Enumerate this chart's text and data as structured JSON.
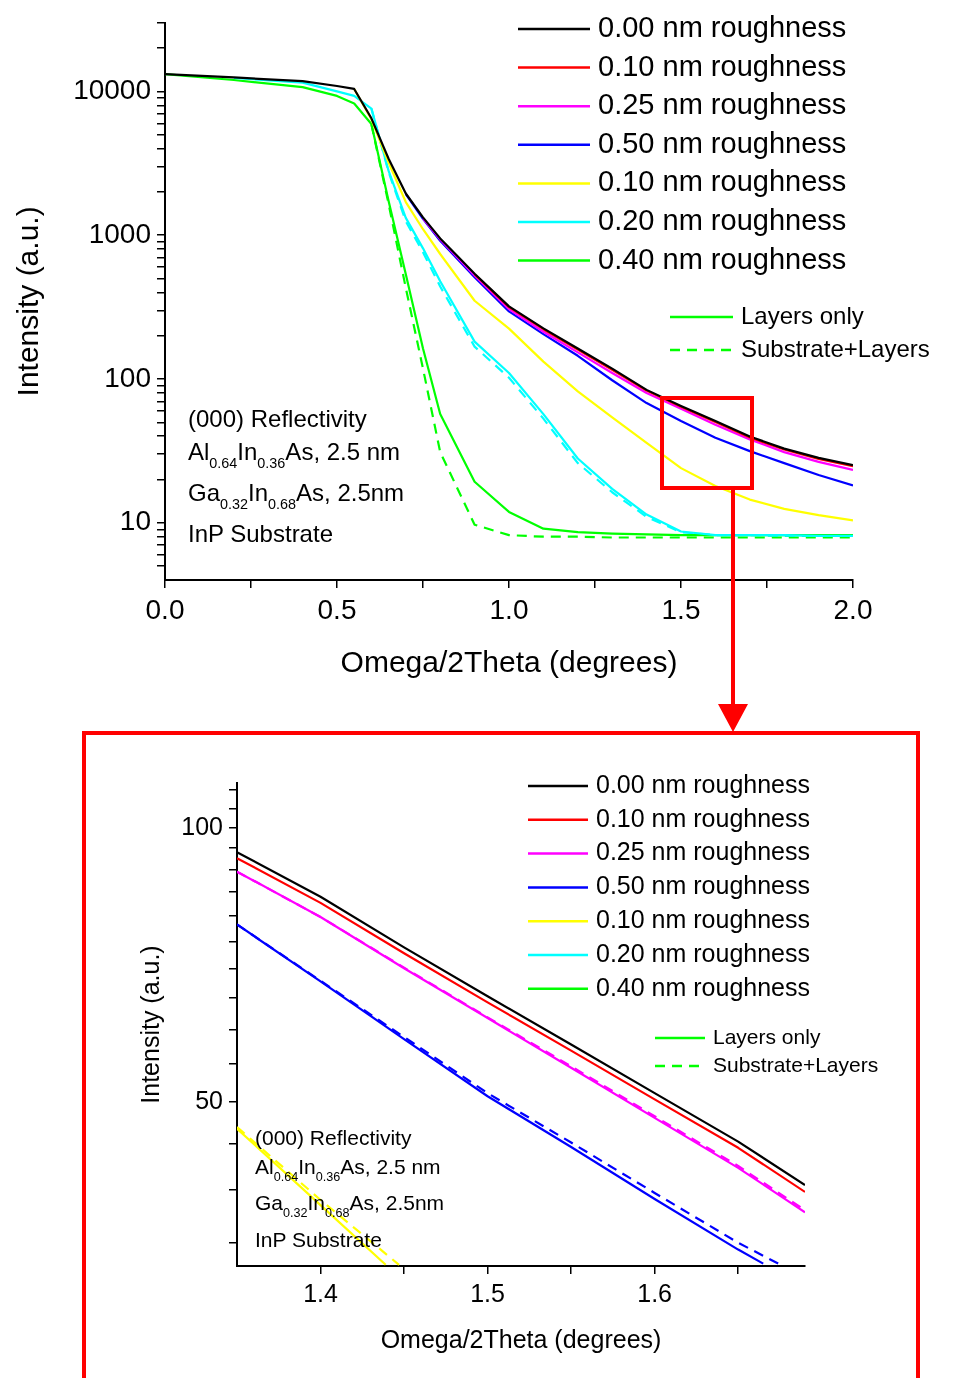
{
  "chart_data": [
    {
      "type": "line",
      "xlabel": "Omega/2Theta (degrees)",
      "ylabel": "Intensity (a.u.)",
      "log": "y",
      "grid": false,
      "legend": "top right",
      "marker": "none",
      "xlim": [
        0,
        2
      ],
      "xticks": [
        {
          "value": 0,
          "label": "0.0"
        },
        {
          "value": 0.25,
          "label": null
        },
        {
          "value": 0.5,
          "label": "0.5"
        },
        {
          "value": 0.75,
          "label": null
        },
        {
          "value": 1,
          "label": "1.0"
        },
        {
          "value": 1.25,
          "label": null
        },
        {
          "value": 1.5,
          "label": "1.5"
        },
        {
          "value": 1.75,
          "label": null
        },
        {
          "value": 2,
          "label": "2.0"
        }
      ],
      "ylim": [
        4,
        30000
      ],
      "yticks": [
        {
          "value": 5,
          "label": null
        },
        {
          "value": 6,
          "label": null
        },
        {
          "value": 7,
          "label": null
        },
        {
          "value": 8,
          "label": null
        },
        {
          "value": 9,
          "label": null
        },
        10,
        {
          "value": 20,
          "label": null
        },
        {
          "value": 30,
          "label": null
        },
        {
          "value": 40,
          "label": null
        },
        {
          "value": 50,
          "label": null
        },
        {
          "value": 60,
          "label": null
        },
        {
          "value": 70,
          "label": null
        },
        {
          "value": 80,
          "label": null
        },
        {
          "value": 90,
          "label": null
        },
        100,
        {
          "value": 200,
          "label": null
        },
        {
          "value": 300,
          "label": null
        },
        {
          "value": 400,
          "label": null
        },
        {
          "value": 500,
          "label": null
        },
        {
          "value": 600,
          "label": null
        },
        {
          "value": 700,
          "label": null
        },
        {
          "value": 800,
          "label": null
        },
        {
          "value": 900,
          "label": null
        },
        1000,
        {
          "value": 2000,
          "label": null
        },
        {
          "value": 3000,
          "label": null
        },
        {
          "value": 4000,
          "label": null
        },
        {
          "value": 5000,
          "label": null
        },
        {
          "value": 6000,
          "label": null
        },
        {
          "value": 7000,
          "label": null
        },
        {
          "value": 8000,
          "label": null
        },
        {
          "value": 9000,
          "label": null
        },
        10000,
        {
          "value": 20000,
          "label": null
        },
        {
          "value": 30000,
          "label": null
        }
      ],
      "x": [
        0,
        0.2,
        0.4,
        0.5,
        0.55,
        0.6,
        0.65,
        0.7,
        0.75,
        0.8,
        0.9,
        1.0,
        1.1,
        1.2,
        1.3,
        1.4,
        1.5,
        1.6,
        1.7,
        1.8,
        1.9,
        2.0
      ],
      "series": [
        {
          "name": "0.00 nm roughness",
          "color": "#000000",
          "line_style": "solid",
          "values": [
            13200,
            12500,
            11800,
            10900,
            10400,
            6500,
            3400,
            1950,
            1330,
            950,
            540,
            320,
            225,
            163,
            118,
            84,
            65,
            51,
            39.8,
            32.8,
            28.3,
            25.2
          ]
        },
        {
          "name": "0.10 nm roughness",
          "color": "#ff0000",
          "line_style": "solid",
          "values": [
            null,
            null,
            null,
            null,
            null,
            null,
            null,
            null,
            null,
            null,
            535,
            316,
            222,
            160,
            116,
            83,
            64,
            50.3,
            39.2,
            32.3,
            27.8,
            24.8
          ]
        },
        {
          "name": "0.25 nm roughness",
          "color": "#ff00ff",
          "line_style": "solid",
          "values": [
            null,
            null,
            null,
            null,
            null,
            null,
            null,
            null,
            1310,
            935,
            525,
            306,
            213,
            153,
            110,
            80,
            62,
            48,
            38,
            31,
            26.5,
            23.3
          ]
        },
        {
          "name": "0.50 nm roughness",
          "color": "#0000ff",
          "line_style": "solid",
          "values": [
            null,
            null,
            null,
            null,
            null,
            null,
            null,
            1930,
            1300,
            915,
            510,
            295,
            205,
            145,
            98,
            68,
            51,
            39,
            31.5,
            26,
            21.5,
            18.2
          ]
        },
        {
          "name": "0.10 nm roughness",
          "color": "#ffff00",
          "line_style": "solid",
          "values": [
            null,
            null,
            null,
            null,
            10400,
            6400,
            3200,
            1700,
            1100,
            740,
            350,
            224,
            132,
            82,
            54,
            36,
            24,
            18,
            14.5,
            12.5,
            11.3,
            10.4
          ]
        },
        {
          "name": "0.20 nm roughness",
          "color": "#00ffff",
          "line_style": "solid",
          "values": [
            null,
            12400,
            11500,
            10000,
            9300,
            7600,
            2800,
            1320,
            810,
            478,
            182,
            110,
            57,
            28,
            17.2,
            11.4,
            8.7,
            8.2,
            8.2,
            8.2,
            8.1,
            8.1
          ]
        },
        {
          "name": "0.40 nm roughness",
          "color": "#00ff00",
          "line_style": "solid",
          "values": [
            13200,
            12000,
            10700,
            9300,
            8250,
            5940,
            1730,
            535,
            163,
            57,
            19.3,
            11.9,
            9.1,
            8.6,
            8.4,
            8.3,
            8.2,
            8.2,
            8.2,
            8.2,
            8.2,
            8.2
          ]
        },
        {
          "color": "#00ffff",
          "line_style": "dashed",
          "values": [
            null,
            null,
            null,
            null,
            null,
            7600,
            2750,
            1250,
            760,
            440,
            168,
            102,
            53,
            26,
            16.3,
            11,
            8.6,
            8.2,
            8.2,
            8.1,
            8.1,
            8.1
          ]
        },
        {
          "name": "Substrate+Layers",
          "color": "#00ff00",
          "line_style": "dashed",
          "values": [
            null,
            null,
            null,
            null,
            null,
            5900,
            1650,
            430,
            118,
            31,
            9.7,
            8.2,
            8.0,
            8.0,
            7.9,
            7.9,
            7.9,
            7.9,
            7.9,
            7.9,
            7.9,
            7.9
          ]
        }
      ],
      "annotations": [
        "Layers only",
        "(000) Reflectivity",
        "Al$_{0.64}$In$_{0.36}$As, 2.5 nm",
        "Ga$_{0.32}$In$_{0.68}$As, 2.5nm",
        "InP Substrate"
      ]
    },
    {
      "type": "line",
      "xlabel": "Omega/2Theta (degrees)",
      "ylabel": "Intensity (a.u.)",
      "log": "y",
      "grid": false,
      "legend": "top right",
      "marker": "none",
      "xlim": [
        1.35,
        1.69
      ],
      "xticks": [
        {
          "value": 1.4,
          "label": "1.4"
        },
        {
          "value": 1.45,
          "label": null
        },
        {
          "value": 1.5,
          "label": "1.5"
        },
        {
          "value": 1.55,
          "label": null
        },
        {
          "value": 1.6,
          "label": "1.6"
        },
        {
          "value": 1.65,
          "label": null
        }
      ],
      "ylim": [
        33,
        112
      ],
      "yticks": [
        {
          "value": 35,
          "label": null
        },
        {
          "value": 40,
          "label": null
        },
        {
          "value": 45,
          "label": null
        },
        50,
        {
          "value": 55,
          "label": null
        },
        {
          "value": 60,
          "label": null
        },
        {
          "value": 65,
          "label": null
        },
        {
          "value": 70,
          "label": null
        },
        {
          "value": 75,
          "label": null
        },
        {
          "value": 80,
          "label": null
        },
        {
          "value": 85,
          "label": null
        },
        {
          "value": 90,
          "label": null
        },
        {
          "value": 95,
          "label": null
        },
        100,
        {
          "value": 105,
          "label": null
        },
        {
          "value": 110,
          "label": null
        }
      ],
      "x": [
        1.35,
        1.4,
        1.45,
        1.5,
        1.55,
        1.6,
        1.65,
        1.69
      ],
      "series": [
        {
          "name": "0.00 nm roughness",
          "color": "#000000",
          "line_style": "solid",
          "values": [
            94,
            84,
            73.9,
            65.3,
            57.8,
            51.1,
            45.2,
            40.5
          ]
        },
        {
          "name": "0.10 nm roughness",
          "color": "#ff0000",
          "line_style": "solid",
          "values": [
            92.6,
            82.7,
            72.8,
            64.3,
            56.9,
            50.3,
            44.5,
            39.8
          ]
        },
        {
          "name": "0.25 nm roughness",
          "color": "#ff00ff",
          "line_style": "solid",
          "values": [
            89.5,
            79.8,
            70.1,
            61.8,
            54.5,
            48,
            42.3,
            37.8
          ]
        },
        {
          "name": "0.50 nm roughness",
          "color": "#0000ff",
          "line_style": "solid",
          "x": [
            1.35,
            1.4,
            1.45,
            1.5,
            1.55,
            1.6,
            1.65,
            1.665
          ],
          "values": [
            78.3,
            67.8,
            58.6,
            50.7,
            44.6,
            39.1,
            34.4,
            33.2
          ]
        },
        {
          "name": "0.10 nm roughness",
          "color": "#ffff00",
          "line_style": "solid",
          "x": [
            1.35,
            1.4,
            1.439
          ],
          "values": [
            46.7,
            38.5,
            33.1
          ]
        },
        {
          "name": "0.20 nm roughness",
          "color": "#00ffff",
          "line_style": "solid",
          "values": [
            null,
            null,
            null,
            null,
            null,
            null,
            null,
            null
          ]
        },
        {
          "name": "0.40 nm roughness",
          "color": "#00ff00",
          "line_style": "solid",
          "values": [
            null,
            null,
            null,
            null,
            null,
            null,
            null,
            null
          ]
        },
        {
          "color": "#ff00ff",
          "line_style": "dashed",
          "values": [
            89.5,
            79.8,
            70.2,
            61.9,
            54.7,
            48.2,
            42.5,
            38
          ]
        },
        {
          "color": "#0000ff",
          "line_style": "dashed",
          "x": [
            1.35,
            1.4,
            1.45,
            1.5,
            1.55,
            1.6,
            1.65,
            1.674
          ],
          "values": [
            78.3,
            67.9,
            58.9,
            51.1,
            45.1,
            39.7,
            35,
            33.2
          ]
        },
        {
          "color": "#ffff00",
          "line_style": "dashed",
          "x": [
            1.35,
            1.4,
            1.447
          ],
          "values": [
            46.9,
            39,
            33.1
          ]
        },
        {
          "name": "Substrate+Layers",
          "color": "#00ff00",
          "line_style": "dashed",
          "values": [
            null,
            null,
            null,
            null,
            null,
            null,
            null,
            null
          ]
        }
      ],
      "annotations": [
        "Layers only",
        "(000) Reflectivity",
        "Al$_{0.64}$In$_{0.36}$As, 2.5 nm",
        "Ga$_{0.32}$In$_{0.68}$As, 2.5nm",
        "InP Substrate"
      ]
    }
  ]
}
